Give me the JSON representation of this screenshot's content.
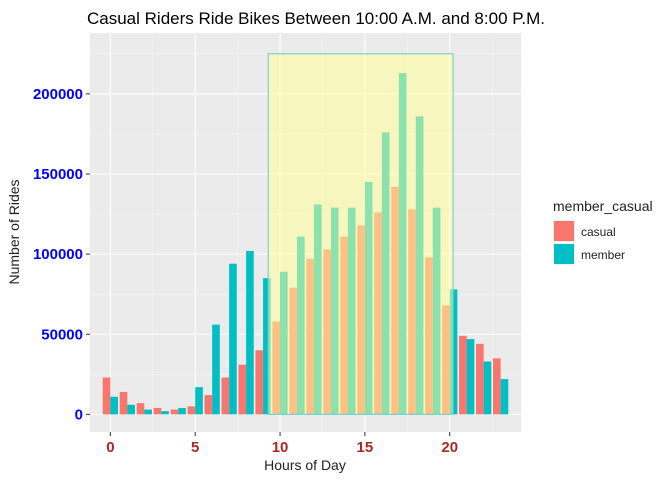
{
  "chart_data": {
    "type": "bar",
    "title": "Casual Riders Ride Bikes Between 10:00 A.M. and 8:00 P.M.",
    "xlabel": "Hours of Day",
    "ylabel": "Number of Rides",
    "x_ticks": [
      0,
      5,
      10,
      15,
      20
    ],
    "x_tick_labels": [
      "0",
      "5",
      "10",
      "15",
      "20"
    ],
    "y_ticks": [
      0,
      50000,
      100000,
      150000,
      200000
    ],
    "y_tick_labels": [
      "0",
      "50000",
      "100000",
      "150000",
      "200000"
    ],
    "xlim": [
      -1.2,
      24.2
    ],
    "ylim": [
      -11000,
      238000
    ],
    "grid": true,
    "legend_position": "right",
    "legend_title": "member_casual",
    "hours": [
      0,
      1,
      2,
      3,
      4,
      5,
      6,
      7,
      8,
      9,
      10,
      11,
      12,
      13,
      14,
      15,
      16,
      17,
      18,
      19,
      20,
      21,
      22,
      23
    ],
    "series": [
      {
        "name": "casual",
        "color": "#F8766D",
        "values": [
          23000,
          14000,
          7000,
          4000,
          3000,
          5000,
          12000,
          23000,
          31000,
          40000,
          58000,
          79000,
          97000,
          103000,
          111000,
          118000,
          126000,
          142000,
          128000,
          98000,
          68000,
          49000,
          44000,
          35000
        ]
      },
      {
        "name": "member",
        "color": "#00BFC4",
        "values": [
          11000,
          6000,
          3000,
          2000,
          4000,
          17000,
          56000,
          94000,
          102000,
          85000,
          89000,
          111000,
          131000,
          129000,
          129000,
          145000,
          176000,
          213000,
          186000,
          129000,
          78000,
          47000,
          33000,
          22000
        ]
      }
    ],
    "highlight": {
      "x_start": 9.3,
      "x_end": 20.2,
      "y_start": 0,
      "y_end": 225000,
      "fill": "#FFFF99",
      "stroke": "#66CCCC"
    }
  }
}
